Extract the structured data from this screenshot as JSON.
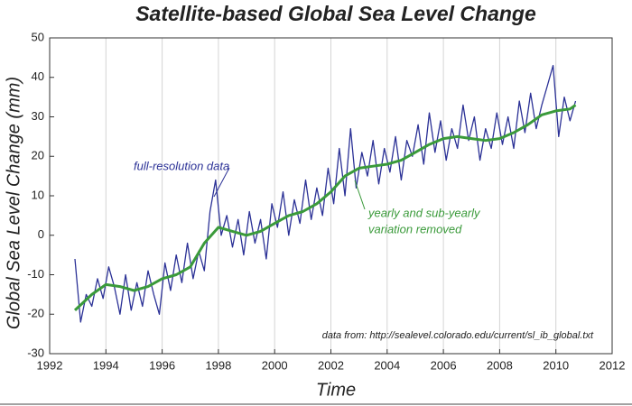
{
  "chart_data": {
    "type": "line",
    "title": "Satellite-based Global Sea Level Change",
    "xlabel": "Time",
    "ylabel": "Global Sea Level Change (mm)",
    "annotations": [
      "full-resolution data",
      "yearly and sub-yearly",
      "variation removed",
      "data from: http://sealevel.colorado.edu/current/sl_ib_global.txt"
    ],
    "xlim": [
      1992,
      2012
    ],
    "xticks": [
      1992,
      1994,
      1996,
      1998,
      2000,
      2002,
      2004,
      2006,
      2008,
      2010,
      2012
    ],
    "ylim": [
      -30,
      50
    ],
    "yticks": [
      -30,
      -20,
      -10,
      0,
      10,
      20,
      30,
      40,
      50
    ],
    "grid": true,
    "series": [
      {
        "color": "#2b3196",
        "x": [
          1992.9,
          1993.1,
          1993.3,
          1993.5,
          1993.7,
          1993.9,
          1994.1,
          1994.3,
          1994.5,
          1994.7,
          1994.9,
          1995.1,
          1995.3,
          1995.5,
          1995.7,
          1995.9,
          1996.1,
          1996.3,
          1996.5,
          1996.7,
          1996.9,
          1997.1,
          1997.3,
          1997.5,
          1997.7,
          1997.9,
          1998.1,
          1998.3,
          1998.5,
          1998.7,
          1998.9,
          1999.1,
          1999.3,
          1999.5,
          1999.7,
          1999.9,
          2000.1,
          2000.3,
          2000.5,
          2000.7,
          2000.9,
          2001.1,
          2001.3,
          2001.5,
          2001.7,
          2001.9,
          2002.1,
          2002.3,
          2002.5,
          2002.7,
          2002.9,
          2003.1,
          2003.3,
          2003.5,
          2003.7,
          2003.9,
          2004.1,
          2004.3,
          2004.5,
          2004.7,
          2004.9,
          2005.1,
          2005.3,
          2005.5,
          2005.7,
          2005.9,
          2006.1,
          2006.3,
          2006.5,
          2006.7,
          2006.9,
          2007.1,
          2007.3,
          2007.5,
          2007.7,
          2007.9,
          2008.1,
          2008.3,
          2008.5,
          2008.7,
          2008.9,
          2009.1,
          2009.3,
          2009.5,
          2009.7,
          2009.9,
          2010.1,
          2010.3,
          2010.5,
          2010.7
        ],
        "values": [
          -6,
          -22,
          -15,
          -18,
          -11,
          -16,
          -8,
          -13,
          -20,
          -10,
          -19,
          -12,
          -18,
          -9,
          -15,
          -20,
          -7,
          -14,
          -5,
          -12,
          -2,
          -11,
          -4,
          -9,
          6,
          14,
          0,
          5,
          -3,
          4,
          -5,
          6,
          -2,
          4,
          -6,
          8,
          2,
          11,
          0,
          9,
          3,
          14,
          4,
          12,
          5,
          17,
          8,
          22,
          10,
          27,
          12,
          21,
          15,
          24,
          13,
          22,
          16,
          25,
          14,
          24,
          20,
          28,
          18,
          31,
          21,
          29,
          19,
          27,
          22,
          33,
          24,
          30,
          19,
          27,
          22,
          31,
          23,
          30,
          22,
          34,
          26,
          36,
          27,
          33,
          38,
          43,
          25,
          35,
          29,
          34
        ],
        "width": 1.3
      },
      {
        "color": "#3a9a3a",
        "x": [
          1992.9,
          1993.5,
          1994,
          1994.5,
          1995,
          1995.5,
          1996,
          1996.5,
          1997,
          1997.5,
          1998,
          1998.5,
          1999,
          1999.5,
          2000,
          2000.5,
          2001,
          2001.5,
          2002,
          2002.5,
          2003,
          2003.5,
          2004,
          2004.5,
          2005,
          2005.5,
          2006,
          2006.5,
          2007,
          2007.5,
          2008,
          2008.5,
          2009,
          2009.5,
          2010,
          2010.5,
          2010.7
        ],
        "values": [
          -19,
          -15,
          -12.5,
          -13,
          -14,
          -13,
          -11,
          -10,
          -8,
          -2,
          2,
          1,
          0,
          1,
          3,
          5,
          6,
          8,
          11,
          15,
          17,
          17.5,
          18,
          19,
          21,
          23,
          24.5,
          25,
          24.5,
          24,
          24.5,
          26,
          28,
          30.5,
          31.5,
          32,
          33
        ],
        "width": 3
      }
    ]
  }
}
